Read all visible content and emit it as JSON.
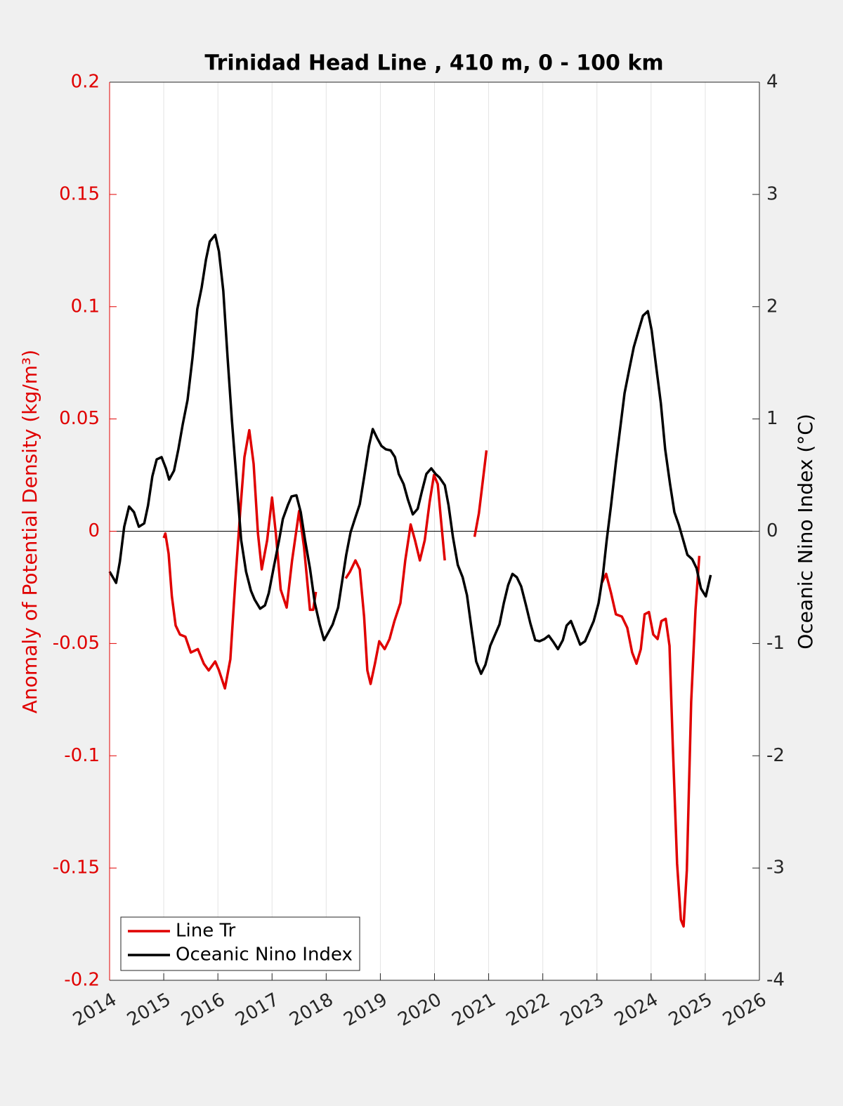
{
  "chart_data": {
    "type": "line",
    "title": "Trinidad Head Line , 410 m, 0 - 100 km",
    "ylabel": "Anomaly of Potential Density (kg/m³)",
    "y2label": "Oceanic Nino Index (°C)",
    "xlim": [
      2014,
      2026
    ],
    "xticks": [
      2014,
      2015,
      2016,
      2017,
      2018,
      2019,
      2020,
      2021,
      2022,
      2023,
      2024,
      2025,
      2026
    ],
    "ylim": [
      -0.2,
      0.2
    ],
    "yticks": [
      0.2,
      0.15,
      0.1,
      0.05,
      0,
      -0.05,
      -0.1,
      -0.15,
      -0.2
    ],
    "y2lim": [
      -4,
      4
    ],
    "y2ticks": [
      4,
      3,
      2,
      1,
      0,
      -1,
      -2,
      -3,
      -4
    ],
    "grid": true,
    "legend": "lower left",
    "series": [
      {
        "name": "Line Tr",
        "color": "#e00000",
        "x": [
          2015.0,
          2015.03,
          2015.09,
          2015.15,
          2015.22,
          2015.3,
          2015.4,
          2015.5,
          2015.63,
          2015.74,
          2015.83,
          2015.95,
          2016.02,
          2016.13,
          2016.23,
          2016.32,
          2016.41,
          2016.49,
          2016.58,
          2016.66,
          2016.74,
          2016.81,
          2016.91,
          2017.0,
          2017.07,
          2017.16,
          2017.27,
          2017.37,
          2017.5,
          2017.59,
          2017.7,
          2017.76,
          2017.81,
          2018.1,
          2018.36,
          2018.44,
          2018.54,
          2018.62,
          2018.7,
          2018.76,
          2018.82,
          2018.9,
          2018.98,
          2019.08,
          2019.17,
          2019.26,
          2019.37,
          2019.46,
          2019.56,
          2019.64,
          2019.73,
          2019.82,
          2019.91,
          2019.99,
          2020.06,
          2020.12,
          2020.19,
          2020.5,
          2020.74,
          2020.82,
          2020.9,
          2020.96,
          2022.0,
          2023.09,
          2023.17,
          2023.26,
          2023.35,
          2023.46,
          2023.56,
          2023.65,
          2023.73,
          2023.81,
          2023.88,
          2023.96,
          2024.04,
          2024.12,
          2024.19,
          2024.27,
          2024.34,
          2024.4,
          2024.48,
          2024.55,
          2024.6,
          2024.66,
          2024.74,
          2024.82,
          2024.89
        ],
        "values": [
          -0.003,
          -0.001,
          -0.01,
          -0.029,
          -0.042,
          -0.046,
          -0.047,
          -0.054,
          -0.0525,
          -0.059,
          -0.062,
          -0.058,
          -0.062,
          -0.07,
          -0.057,
          -0.023,
          0.008,
          0.033,
          0.045,
          0.03,
          -0.001,
          -0.017,
          -0.004,
          0.015,
          -0.001,
          -0.026,
          -0.034,
          -0.013,
          0.009,
          -0.007,
          -0.035,
          -0.035,
          -0.027,
          null,
          -0.021,
          -0.018,
          -0.013,
          -0.017,
          -0.038,
          -0.062,
          -0.068,
          -0.059,
          -0.049,
          -0.0525,
          -0.048,
          -0.04,
          -0.032,
          -0.013,
          0.003,
          -0.004,
          -0.013,
          -0.004,
          0.013,
          0.025,
          0.021,
          0.005,
          -0.013,
          null,
          -0.0025,
          0.008,
          0.024,
          0.036,
          null,
          -0.023,
          -0.019,
          -0.0275,
          -0.037,
          -0.038,
          -0.043,
          -0.054,
          -0.059,
          -0.0525,
          -0.037,
          -0.036,
          -0.046,
          -0.048,
          -0.04,
          -0.039,
          -0.051,
          -0.095,
          -0.148,
          -0.173,
          -0.176,
          -0.151,
          -0.076,
          -0.035,
          -0.011
        ]
      },
      {
        "name": "Oceanic Nino Index",
        "color": "#000000",
        "axis": "y2",
        "x": [
          2014.0,
          2014.12,
          2014.19,
          2014.27,
          2014.36,
          2014.45,
          2014.54,
          2014.64,
          2014.71,
          2014.79,
          2014.87,
          2014.96,
          2015.04,
          2015.1,
          2015.19,
          2015.27,
          2015.35,
          2015.44,
          2015.53,
          2015.62,
          2015.7,
          2015.78,
          2015.85,
          2015.95,
          2016.02,
          2016.1,
          2016.18,
          2016.26,
          2016.35,
          2016.43,
          2016.52,
          2016.61,
          2016.68,
          2016.78,
          2016.87,
          2016.94,
          2017.04,
          2017.13,
          2017.2,
          2017.29,
          2017.36,
          2017.45,
          2017.53,
          2017.61,
          2017.7,
          2017.79,
          2017.88,
          2017.96,
          2018.03,
          2018.12,
          2018.22,
          2018.29,
          2018.37,
          2018.45,
          2018.53,
          2018.62,
          2018.7,
          2018.79,
          2018.86,
          2018.94,
          2019.02,
          2019.1,
          2019.19,
          2019.27,
          2019.34,
          2019.43,
          2019.51,
          2019.6,
          2019.69,
          2019.77,
          2019.85,
          2019.94,
          2020.02,
          2020.09,
          2020.19,
          2020.26,
          2020.34,
          2020.43,
          2020.52,
          2020.6,
          2020.69,
          2020.77,
          2020.86,
          2020.94,
          2021.03,
          2021.11,
          2021.2,
          2021.28,
          2021.36,
          2021.44,
          2021.52,
          2021.6,
          2021.69,
          2021.77,
          2021.86,
          2021.94,
          2022.03,
          2022.11,
          2022.2,
          2022.28,
          2022.37,
          2022.44,
          2022.52,
          2022.61,
          2022.69,
          2022.78,
          2022.86,
          2022.94,
          2023.03,
          2023.11,
          2023.18,
          2023.26,
          2023.35,
          2023.43,
          2023.51,
          2023.6,
          2023.68,
          2023.77,
          2023.85,
          2023.94,
          2024.01,
          2024.09,
          2024.18,
          2024.26,
          2024.35,
          2024.43,
          2024.51,
          2024.6,
          2024.67,
          2024.76,
          2024.84,
          2024.92,
          2025.01,
          2025.1
        ],
        "values": [
          -0.36,
          -0.46,
          -0.27,
          0.04,
          0.22,
          0.17,
          0.04,
          0.07,
          0.23,
          0.49,
          0.64,
          0.66,
          0.56,
          0.46,
          0.54,
          0.73,
          0.95,
          1.17,
          1.54,
          1.98,
          2.17,
          2.42,
          2.58,
          2.64,
          2.49,
          2.14,
          1.54,
          0.98,
          0.42,
          -0.08,
          -0.36,
          -0.53,
          -0.61,
          -0.69,
          -0.66,
          -0.55,
          -0.3,
          -0.08,
          0.11,
          0.23,
          0.31,
          0.32,
          0.17,
          -0.08,
          -0.33,
          -0.64,
          -0.83,
          -0.97,
          -0.91,
          -0.83,
          -0.68,
          -0.46,
          -0.21,
          -0.01,
          0.11,
          0.24,
          0.48,
          0.76,
          0.91,
          0.83,
          0.76,
          0.73,
          0.72,
          0.66,
          0.51,
          0.42,
          0.28,
          0.15,
          0.2,
          0.36,
          0.51,
          0.56,
          0.51,
          0.48,
          0.41,
          0.23,
          -0.05,
          -0.3,
          -0.41,
          -0.57,
          -0.89,
          -1.16,
          -1.27,
          -1.19,
          -1.02,
          -0.93,
          -0.83,
          -0.64,
          -0.48,
          -0.38,
          -0.41,
          -0.49,
          -0.66,
          -0.82,
          -0.97,
          -0.98,
          -0.96,
          -0.93,
          -0.99,
          -1.05,
          -0.97,
          -0.84,
          -0.8,
          -0.91,
          -1.01,
          -0.98,
          -0.89,
          -0.8,
          -0.64,
          -0.39,
          -0.08,
          0.23,
          0.61,
          0.92,
          1.23,
          1.45,
          1.64,
          1.79,
          1.92,
          1.96,
          1.79,
          1.48,
          1.14,
          0.73,
          0.42,
          0.17,
          0.06,
          -0.09,
          -0.21,
          -0.25,
          -0.33,
          -0.51,
          -0.58,
          -0.39
        ]
      }
    ]
  }
}
